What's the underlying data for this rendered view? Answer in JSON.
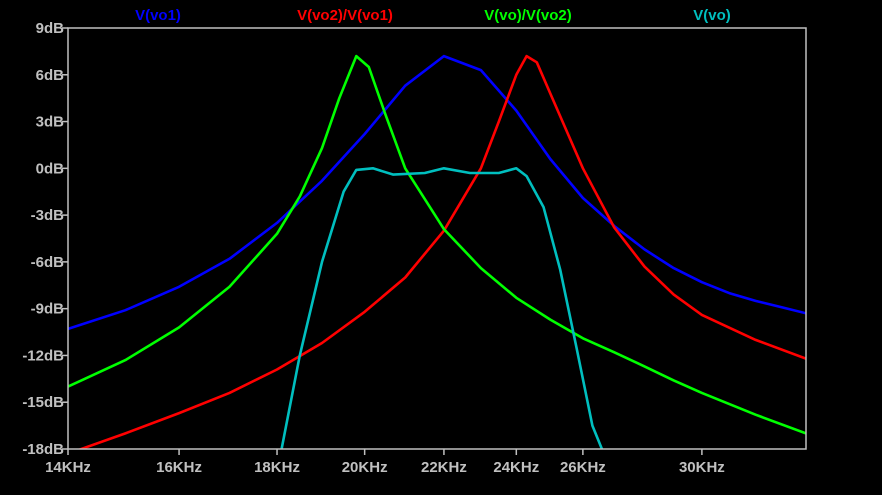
{
  "chart_data": {
    "type": "line",
    "title": "",
    "xlabel": "",
    "ylabel": "",
    "x_scale": "log",
    "xlim": [
      14000,
      34000
    ],
    "ylim": [
      -18,
      9
    ],
    "grid": false,
    "legend_position": "top",
    "background": "#000000",
    "axis_color": "#c0c0c0",
    "y_ticks": [
      {
        "value": 9,
        "label": "9dB"
      },
      {
        "value": 6,
        "label": "6dB"
      },
      {
        "value": 3,
        "label": "3dB"
      },
      {
        "value": 0,
        "label": "0dB"
      },
      {
        "value": -3,
        "label": "-3dB"
      },
      {
        "value": -6,
        "label": "-6dB"
      },
      {
        "value": -9,
        "label": "-9dB"
      },
      {
        "value": -12,
        "label": "-12dB"
      },
      {
        "value": -15,
        "label": "-15dB"
      },
      {
        "value": -18,
        "label": "-18dB"
      }
    ],
    "x_ticks": [
      {
        "value": 14000,
        "label": "14KHz"
      },
      {
        "value": 16000,
        "label": "16KHz"
      },
      {
        "value": 18000,
        "label": "18KHz"
      },
      {
        "value": 20000,
        "label": "20KHz"
      },
      {
        "value": 22000,
        "label": "22KHz"
      },
      {
        "value": 24000,
        "label": "24KHz"
      },
      {
        "value": 26000,
        "label": "26KHz"
      },
      {
        "value": 30000,
        "label": "30KHz"
      }
    ],
    "series": [
      {
        "name": "V(vo1)",
        "color": "#0000ff",
        "points": [
          [
            14000,
            -10.3
          ],
          [
            15000,
            -9.1
          ],
          [
            16000,
            -7.6
          ],
          [
            17000,
            -5.8
          ],
          [
            18000,
            -3.5
          ],
          [
            19000,
            -0.8
          ],
          [
            20000,
            2.2
          ],
          [
            21000,
            5.3
          ],
          [
            22000,
            7.2
          ],
          [
            23000,
            6.3
          ],
          [
            24000,
            3.7
          ],
          [
            25000,
            0.6
          ],
          [
            26000,
            -1.9
          ],
          [
            27000,
            -3.7
          ],
          [
            28000,
            -5.2
          ],
          [
            29000,
            -6.4
          ],
          [
            30000,
            -7.3
          ],
          [
            31000,
            -8.0
          ],
          [
            32000,
            -8.5
          ],
          [
            33000,
            -8.9
          ],
          [
            34000,
            -9.3
          ]
        ]
      },
      {
        "name": "V(vo2)/V(vo1)",
        "color": "#ff0000",
        "points": [
          [
            14000,
            -18.3
          ],
          [
            15000,
            -17.0
          ],
          [
            16000,
            -15.7
          ],
          [
            17000,
            -14.4
          ],
          [
            18000,
            -12.9
          ],
          [
            19000,
            -11.2
          ],
          [
            20000,
            -9.2
          ],
          [
            21000,
            -7.0
          ],
          [
            22000,
            -4.0
          ],
          [
            23000,
            0.0
          ],
          [
            23500,
            3.0
          ],
          [
            24000,
            6.0
          ],
          [
            24300,
            7.2
          ],
          [
            24600,
            6.8
          ],
          [
            25000,
            4.8
          ],
          [
            26000,
            0.0
          ],
          [
            27000,
            -3.8
          ],
          [
            28000,
            -6.3
          ],
          [
            29000,
            -8.1
          ],
          [
            30000,
            -9.4
          ],
          [
            32000,
            -11.0
          ],
          [
            34000,
            -12.2
          ]
        ]
      },
      {
        "name": "V(vo)/V(vo2)",
        "color": "#00ff00",
        "points": [
          [
            14000,
            -14.0
          ],
          [
            15000,
            -12.3
          ],
          [
            16000,
            -10.2
          ],
          [
            17000,
            -7.6
          ],
          [
            18000,
            -4.2
          ],
          [
            18500,
            -1.8
          ],
          [
            19000,
            1.3
          ],
          [
            19400,
            4.5
          ],
          [
            19800,
            7.2
          ],
          [
            20100,
            6.5
          ],
          [
            20500,
            3.5
          ],
          [
            21000,
            0.0
          ],
          [
            22000,
            -3.9
          ],
          [
            23000,
            -6.4
          ],
          [
            24000,
            -8.3
          ],
          [
            25000,
            -9.7
          ],
          [
            26000,
            -10.9
          ],
          [
            27000,
            -11.8
          ],
          [
            28000,
            -12.7
          ],
          [
            29000,
            -13.6
          ],
          [
            30000,
            -14.4
          ],
          [
            32000,
            -15.8
          ],
          [
            34000,
            -17.0
          ]
        ]
      },
      {
        "name": "V(vo)",
        "color": "#00bfbf",
        "points": [
          [
            18100,
            -18.0
          ],
          [
            18500,
            -12.0
          ],
          [
            19000,
            -6.0
          ],
          [
            19500,
            -1.5
          ],
          [
            19800,
            -0.1
          ],
          [
            20200,
            0.0
          ],
          [
            20700,
            -0.4
          ],
          [
            21500,
            -0.3
          ],
          [
            22000,
            0.0
          ],
          [
            22700,
            -0.3
          ],
          [
            23500,
            -0.3
          ],
          [
            24000,
            0.0
          ],
          [
            24300,
            -0.5
          ],
          [
            24800,
            -2.5
          ],
          [
            25300,
            -6.5
          ],
          [
            25800,
            -11.5
          ],
          [
            26300,
            -16.5
          ],
          [
            26600,
            -18.0
          ]
        ]
      }
    ]
  }
}
